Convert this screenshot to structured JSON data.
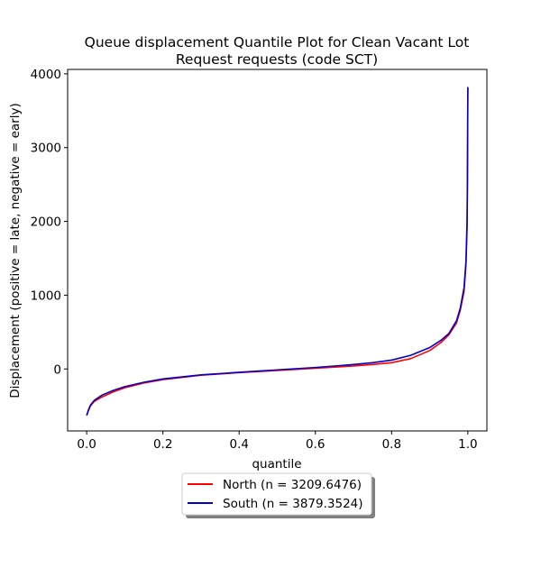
{
  "chart_data": {
    "type": "line",
    "title_lines": [
      "Queue displacement Quantile Plot for Clean Vacant Lot",
      "Request  requests (code SCT)"
    ],
    "xlabel": "quantile",
    "ylabel": "Displacement (positive = late, negative = early)",
    "xlim": [
      -0.05,
      1.05
    ],
    "ylim": [
      -840,
      4060
    ],
    "xticks": [
      0.0,
      0.2,
      0.4,
      0.6,
      0.8,
      1.0
    ],
    "xtick_labels": [
      "0.0",
      "0.2",
      "0.4",
      "0.6",
      "0.8",
      "1.0"
    ],
    "yticks": [
      0,
      1000,
      2000,
      3000,
      4000
    ],
    "ytick_labels": [
      "0",
      "1000",
      "2000",
      "3000",
      "4000"
    ],
    "grid": false,
    "legend_position": "below-center",
    "series": [
      {
        "name": "North (n = 3209.6476)",
        "color": "#ff0000",
        "x": [
          0.0,
          0.005,
          0.01,
          0.02,
          0.04,
          0.07,
          0.1,
          0.15,
          0.2,
          0.3,
          0.4,
          0.5,
          0.6,
          0.7,
          0.75,
          0.8,
          0.85,
          0.9,
          0.93,
          0.95,
          0.97,
          0.98,
          0.99,
          0.995,
          0.998,
          0.999,
          1.0
        ],
        "y": [
          -630,
          -560,
          -500,
          -440,
          -380,
          -310,
          -255,
          -190,
          -145,
          -85,
          -50,
          -20,
          10,
          40,
          60,
          85,
          140,
          250,
          360,
          460,
          620,
          790,
          1050,
          1400,
          1900,
          2500,
          3820
        ]
      },
      {
        "name": "South (n = 3879.3524)",
        "color": "#0000cc",
        "x": [
          0.0,
          0.005,
          0.01,
          0.02,
          0.04,
          0.07,
          0.1,
          0.15,
          0.2,
          0.3,
          0.4,
          0.5,
          0.6,
          0.7,
          0.75,
          0.8,
          0.85,
          0.9,
          0.93,
          0.95,
          0.97,
          0.98,
          0.99,
          0.995,
          0.998,
          0.999,
          1.0
        ],
        "y": [
          -630,
          -550,
          -490,
          -425,
          -355,
          -290,
          -240,
          -180,
          -135,
          -80,
          -45,
          -12,
          20,
          60,
          85,
          120,
          185,
          290,
          390,
          480,
          650,
          820,
          1100,
          1450,
          2000,
          2600,
          3820
        ]
      }
    ]
  }
}
